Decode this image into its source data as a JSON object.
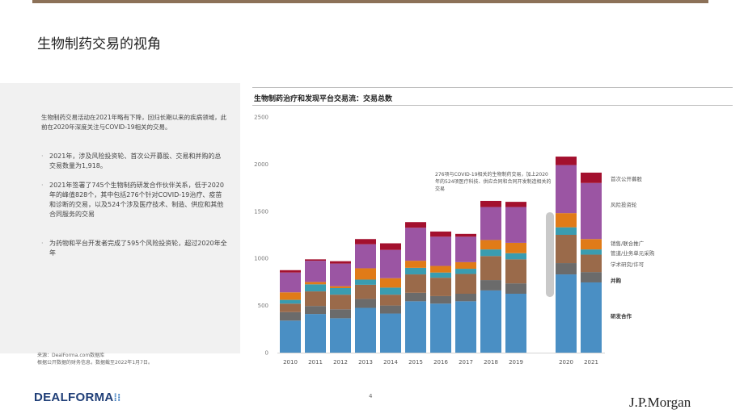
{
  "slide": {
    "title": "生物制药交易的视角",
    "page_number": "4"
  },
  "left_panel": {
    "intro": "生物制药交易活动在2021年略有下降，回归长期以来的疾病领域，此前在2020年深度关注与COVID-19相关的交易。",
    "bullets": [
      "2021年，涉及风险投资轮、首次公开募股、交易和并购的总交易数量为1,918。",
      "2021年签署了745个生物制药研发合作伙伴关系，低于2020年的峰值828个，其中包括276个针对COVID-19治疗、疫苗和诊断的交易，以及524个涉及医疗技术、制造、供应和其他合同服务的交易",
      "为药物和平台开发者完成了595个风险投资轮，超过2020年全年"
    ],
    "bullet_marker": "·"
  },
  "source": {
    "line1": "来源：DealForma.com数据库",
    "line2": "根据公开数据的财务信息，数据截至2022年1月7日。"
  },
  "logos": {
    "dealforma_text": "DEALFORMA",
    "dealforma_dots": "⁞⁝",
    "jpmorgan": "J.P.Morgan"
  },
  "colors": {
    "研发合作": "#4a8fc4",
    "并购": "#6b6b6b",
    "学术研究/许可": "#9a6a4a",
    "销售/联合推广": "#3a9cb0",
    "管道/业务单元采购": "#e07b18",
    "风险投资轮": "#9b55a3",
    "首次公开募股": "#a3102e",
    "covid_gap": "#c9c9c9",
    "top_rule": "#8c7158"
  },
  "chart_data": {
    "type": "bar",
    "stacked": true,
    "title": "生物制药治疗和发现平台交易流：交易总数",
    "ylim": [
      0,
      2500
    ],
    "yticks": [
      "0",
      "500",
      "1000",
      "1500",
      "2000",
      "2500"
    ],
    "categories": [
      "2010",
      "2011",
      "2012",
      "2013",
      "2014",
      "2015",
      "2016",
      "2017",
      "2018",
      "2019",
      "2020",
      "2021"
    ],
    "series": [
      {
        "name": "研发合作",
        "values": [
          340,
          410,
          365,
          475,
          415,
          545,
          520,
          545,
          660,
          625,
          830,
          745
        ]
      },
      {
        "name": "并购",
        "values": [
          90,
          85,
          95,
          95,
          85,
          90,
          80,
          80,
          110,
          110,
          120,
          110
        ]
      },
      {
        "name": "学术研究/许可",
        "values": [
          90,
          155,
          155,
          150,
          115,
          195,
          195,
          210,
          255,
          255,
          300,
          185
        ]
      },
      {
        "name": "销售/联合推广",
        "values": [
          40,
          75,
          70,
          55,
          75,
          70,
          55,
          55,
          70,
          65,
          80,
          55
        ]
      },
      {
        "name": "管道/业务单元采购",
        "values": [
          80,
          25,
          20,
          120,
          100,
          75,
          70,
          70,
          100,
          110,
          150,
          110
        ]
      },
      {
        "name": "风险投资轮",
        "values": [
          210,
          225,
          240,
          255,
          300,
          350,
          310,
          270,
          350,
          380,
          510,
          595
        ]
      },
      {
        "name": "首次公开募股",
        "values": [
          25,
          15,
          25,
          55,
          70,
          60,
          55,
          30,
          65,
          55,
          90,
          110
        ]
      }
    ],
    "covid_2020_bar": {
      "category": "2020",
      "range": [
        590,
        1490
      ]
    },
    "annotation": "276项与COVID-19相关的生物制药交易，加上2020年的524项医疗科技、供应合同和合同开发制造相关的交易",
    "legend_placement": "right",
    "grid": false
  }
}
